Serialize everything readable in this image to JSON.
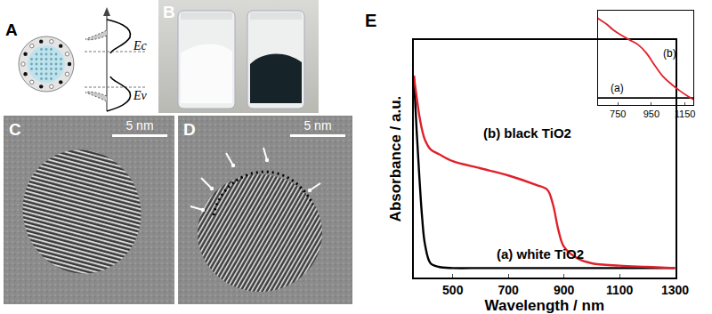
{
  "panels": [
    {
      "label": "A",
      "texts": [
        "Ec",
        "Ev"
      ]
    },
    {
      "label": "B"
    },
    {
      "label": "C",
      "scale_bar": "5 nm"
    },
    {
      "label": "D",
      "scale_bar": "5 nm"
    },
    {
      "label": "E"
    }
  ],
  "chart_data": [
    {
      "type": "line",
      "x_label": "Wavelength / nm",
      "y_label": "Absorbance / a.u.",
      "xlim": [
        360,
        1300
      ],
      "xticks": [
        500,
        700,
        900,
        1100,
        1300
      ],
      "ylim": [
        0,
        1
      ],
      "yticks": [],
      "tick_labels": "x",
      "x": [
        360,
        370,
        380,
        390,
        400,
        420,
        450,
        500,
        600,
        700,
        800,
        840,
        860,
        880,
        900,
        950,
        1000,
        1100,
        1200,
        1300
      ],
      "series": [
        {
          "color": "#000000",
          "values": [
            0.85,
            0.62,
            0.42,
            0.25,
            0.14,
            0.06,
            0.045,
            0.04,
            0.04,
            0.04,
            0.04,
            0.04,
            0.04,
            0.04,
            0.04,
            0.04,
            0.04,
            0.04,
            0.04,
            0.04
          ]
        },
        {
          "color": "#e0202a",
          "values": [
            0.85,
            0.76,
            0.68,
            0.62,
            0.58,
            0.54,
            0.52,
            0.49,
            0.46,
            0.43,
            0.39,
            0.37,
            0.31,
            0.2,
            0.13,
            0.08,
            0.06,
            0.05,
            0.045,
            0.04
          ]
        }
      ],
      "annotations": [
        {
          "text": "(b) black TiO2",
          "x": 604,
          "y": 0.61
        },
        {
          "text": "(a) white TiO2",
          "x": 650,
          "y": 0.1
        }
      ]
    },
    {
      "type": "line",
      "xlim": [
        630,
        1200
      ],
      "xticks": [
        750,
        950,
        1150
      ],
      "ylim": [
        0,
        1
      ],
      "yticks": [],
      "tick_labels": "x",
      "x": [
        630,
        680,
        720,
        770,
        820,
        870,
        920,
        970,
        1020,
        1070,
        1120,
        1170,
        1200
      ],
      "series": [
        {
          "color": "#000000",
          "values": [
            0.075,
            0.075,
            0.075,
            0.075,
            0.075,
            0.075,
            0.075,
            0.075,
            0.075,
            0.075,
            0.075,
            0.075,
            0.075
          ]
        },
        {
          "color": "#e0202a",
          "values": [
            0.92,
            0.86,
            0.8,
            0.74,
            0.69,
            0.64,
            0.55,
            0.42,
            0.3,
            0.22,
            0.15,
            0.09,
            0.06
          ]
        }
      ],
      "annotations": [
        {
          "text": "(a)",
          "x": 695,
          "y": 0.18
        },
        {
          "text": "(b)",
          "x": 1010,
          "y": 0.55
        }
      ]
    }
  ]
}
